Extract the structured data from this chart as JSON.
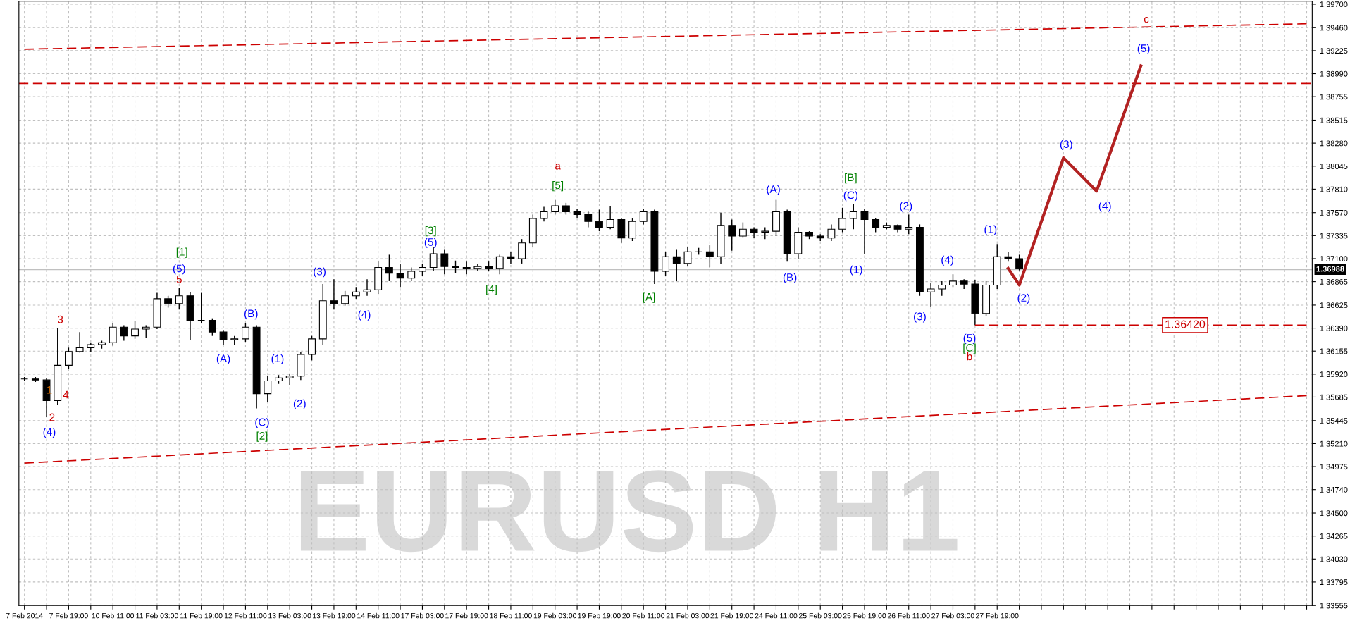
{
  "chart_data": {
    "type": "candlestick",
    "title": "EURUSD H1",
    "color": "#000000",
    "categories": [
      "7 Feb 2014",
      null,
      null,
      null,
      "7 Feb 19:00",
      null,
      null,
      null,
      "10 Feb 11:00",
      null,
      null,
      null,
      "11 Feb 03:00",
      null,
      null,
      null,
      "11 Feb 19:00",
      null,
      null,
      null,
      "12 Feb 11:00",
      null,
      null,
      null,
      "13 Feb 03:00",
      null,
      null,
      null,
      "13 Feb 19:00",
      null,
      null,
      null,
      "14 Feb 11:00",
      null,
      null,
      null,
      "17 Feb 03:00",
      null,
      null,
      null,
      "17 Feb 19:00",
      null,
      null,
      null,
      "18 Feb 11:00",
      null,
      null,
      null,
      "19 Feb 03:00",
      null,
      null,
      null,
      "19 Feb 19:00",
      null,
      null,
      null,
      "20 Feb 11:00",
      null,
      null,
      null,
      "21 Feb 03:00",
      null,
      null,
      null,
      "21 Feb 19:00",
      null,
      null,
      null,
      "24 Feb 11:00",
      null,
      null,
      null,
      "25 Feb 03:00",
      null,
      null,
      null,
      "25 Feb 19:00",
      null,
      null,
      null,
      "26 Feb 11:00",
      null,
      null,
      null,
      "27 Feb 03:00",
      null,
      null,
      null,
      "27 Feb 19:00",
      null,
      null,
      null,
      null,
      null,
      null,
      null,
      null,
      null,
      null,
      null,
      null,
      null,
      null,
      null,
      null,
      null,
      null,
      null,
      null,
      null,
      null,
      null,
      null,
      null,
      null,
      null,
      null
    ],
    "ohlc": [
      [
        1.3587,
        1.3589,
        1.3585,
        1.3587
      ],
      [
        1.3587,
        1.3589,
        1.3584,
        1.3586
      ],
      [
        1.3586,
        1.3588,
        1.3548,
        1.3565
      ],
      [
        1.3565,
        1.3639,
        1.3561,
        1.3601
      ],
      [
        1.3601,
        1.3619,
        1.3597,
        1.3615
      ],
      [
        1.3615,
        1.3635,
        1.3614,
        1.3619
      ],
      [
        1.3619,
        1.3624,
        1.3615,
        1.3622
      ],
      [
        1.3622,
        1.3626,
        1.3618,
        1.3624
      ],
      [
        1.3624,
        1.3644,
        1.3621,
        1.364
      ],
      [
        1.364,
        1.3642,
        1.3626,
        1.3631
      ],
      [
        1.3631,
        1.3646,
        1.3628,
        1.3638
      ],
      [
        1.3638,
        1.3642,
        1.3629,
        1.364
      ],
      [
        1.364,
        1.3675,
        1.3638,
        1.3669
      ],
      [
        1.3669,
        1.3672,
        1.366,
        1.3664
      ],
      [
        1.3664,
        1.368,
        1.3658,
        1.3672
      ],
      [
        1.3672,
        1.3676,
        1.3627,
        1.3647
      ],
      [
        1.3647,
        1.3675,
        1.3644,
        1.3647
      ],
      [
        1.3647,
        1.3649,
        1.3631,
        1.3635
      ],
      [
        1.3635,
        1.3637,
        1.3622,
        1.3627
      ],
      [
        1.3627,
        1.3631,
        1.3622,
        1.3628
      ],
      [
        1.3628,
        1.3644,
        1.3625,
        1.364
      ],
      [
        1.364,
        1.3642,
        1.3557,
        1.3572
      ],
      [
        1.3572,
        1.359,
        1.3563,
        1.3585
      ],
      [
        1.3585,
        1.3591,
        1.3582,
        1.3588
      ],
      [
        1.3588,
        1.3592,
        1.3581,
        1.359
      ],
      [
        1.359,
        1.3615,
        1.3586,
        1.3612
      ],
      [
        1.3612,
        1.3631,
        1.3606,
        1.3628
      ],
      [
        1.3628,
        1.3684,
        1.3622,
        1.3667
      ],
      [
        1.3667,
        1.3689,
        1.3658,
        1.3664
      ],
      [
        1.3664,
        1.3677,
        1.3662,
        1.3672
      ],
      [
        1.3672,
        1.3681,
        1.3669,
        1.3676
      ],
      [
        1.3676,
        1.3689,
        1.3672,
        1.3678
      ],
      [
        1.3678,
        1.3707,
        1.3674,
        1.3701
      ],
      [
        1.3701,
        1.3714,
        1.3687,
        1.3695
      ],
      [
        1.3695,
        1.3705,
        1.3681,
        1.369
      ],
      [
        1.369,
        1.3701,
        1.3687,
        1.3697
      ],
      [
        1.3697,
        1.3705,
        1.3692,
        1.3701
      ],
      [
        1.3701,
        1.3722,
        1.3697,
        1.3715
      ],
      [
        1.3715,
        1.3719,
        1.3694,
        1.3702
      ],
      [
        1.3702,
        1.3708,
        1.3695,
        1.3701
      ],
      [
        1.3701,
        1.3707,
        1.3694,
        1.37
      ],
      [
        1.37,
        1.3705,
        1.3697,
        1.3702
      ],
      [
        1.3702,
        1.3707,
        1.3697,
        1.37
      ],
      [
        1.37,
        1.3714,
        1.3694,
        1.3712
      ],
      [
        1.3712,
        1.3717,
        1.3705,
        1.371
      ],
      [
        1.371,
        1.373,
        1.3705,
        1.3726
      ],
      [
        1.3726,
        1.3755,
        1.3722,
        1.3751
      ],
      [
        1.3751,
        1.3763,
        1.3748,
        1.3758
      ],
      [
        1.3758,
        1.377,
        1.3755,
        1.3764
      ],
      [
        1.3764,
        1.3767,
        1.3755,
        1.3758
      ],
      [
        1.3758,
        1.3761,
        1.3751,
        1.3755
      ],
      [
        1.3755,
        1.3758,
        1.3742,
        1.3748
      ],
      [
        1.3748,
        1.376,
        1.3738,
        1.3742
      ],
      [
        1.3742,
        1.3764,
        1.374,
        1.375
      ],
      [
        1.375,
        1.3751,
        1.3726,
        1.3731
      ],
      [
        1.3731,
        1.3751,
        1.3728,
        1.3748
      ],
      [
        1.3748,
        1.3761,
        1.3745,
        1.3758
      ],
      [
        1.3758,
        1.376,
        1.3684,
        1.3697
      ],
      [
        1.3697,
        1.3717,
        1.3692,
        1.3712
      ],
      [
        1.3712,
        1.3719,
        1.3687,
        1.3705
      ],
      [
        1.3705,
        1.3722,
        1.3702,
        1.3717
      ],
      [
        1.3717,
        1.3721,
        1.3714,
        1.3717
      ],
      [
        1.3717,
        1.3724,
        1.3701,
        1.3712
      ],
      [
        1.3712,
        1.3757,
        1.3705,
        1.3744
      ],
      [
        1.3744,
        1.375,
        1.3718,
        1.3733
      ],
      [
        1.3733,
        1.3747,
        1.3732,
        1.374
      ],
      [
        1.374,
        1.3742,
        1.3731,
        1.3737
      ],
      [
        1.3737,
        1.3742,
        1.373,
        1.3738
      ],
      [
        1.3738,
        1.377,
        1.3733,
        1.3758
      ],
      [
        1.3758,
        1.376,
        1.3707,
        1.3715
      ],
      [
        1.3715,
        1.3742,
        1.371,
        1.3737
      ],
      [
        1.3737,
        1.3738,
        1.373,
        1.3733
      ],
      [
        1.3733,
        1.3735,
        1.3728,
        1.3731
      ],
      [
        1.3731,
        1.3745,
        1.3728,
        1.374
      ],
      [
        1.374,
        1.3762,
        1.3737,
        1.3751
      ],
      [
        1.3751,
        1.3766,
        1.374,
        1.3758
      ],
      [
        1.3758,
        1.3761,
        1.3715,
        1.375
      ],
      [
        1.375,
        1.3751,
        1.3737,
        1.3742
      ],
      [
        1.3742,
        1.3747,
        1.374,
        1.3744
      ],
      [
        1.3744,
        1.3745,
        1.3737,
        1.374
      ],
      [
        1.374,
        1.3755,
        1.3735,
        1.3742
      ],
      [
        1.3742,
        1.3745,
        1.3672,
        1.3676
      ],
      [
        1.3676,
        1.3685,
        1.3661,
        1.3679
      ],
      [
        1.3679,
        1.3687,
        1.3672,
        1.3683
      ],
      [
        1.3683,
        1.3694,
        1.3681,
        1.3687
      ],
      [
        1.3687,
        1.3689,
        1.3679,
        1.3684
      ],
      [
        1.3684,
        1.3688,
        1.3642,
        1.3654
      ],
      [
        1.3654,
        1.3687,
        1.3651,
        1.3683
      ],
      [
        1.3683,
        1.3725,
        1.3679,
        1.3712
      ],
      [
        1.3712,
        1.3717,
        1.3707,
        1.371
      ],
      [
        1.371,
        1.3714,
        1.3698,
        1.37
      ],
      null,
      null,
      null,
      null,
      null,
      null,
      null,
      null,
      null,
      null,
      null,
      null,
      null,
      null,
      null,
      null,
      null,
      null,
      null,
      null,
      null,
      null,
      null,
      null,
      null,
      null
    ],
    "series": [
      {
        "type": "line",
        "color": "#b22222",
        "line_style": "solid",
        "values": [
          null,
          null,
          null,
          null,
          null,
          null,
          null,
          null,
          null,
          null,
          null,
          null,
          null,
          null,
          null,
          null,
          null,
          null,
          null,
          null,
          null,
          null,
          null,
          null,
          null,
          null,
          null,
          null,
          null,
          null,
          null,
          null,
          null,
          null,
          null,
          null,
          null,
          null,
          null,
          null,
          null,
          null,
          null,
          null,
          null,
          null,
          null,
          null,
          null,
          null,
          null,
          null,
          null,
          null,
          null,
          null,
          null,
          null,
          null,
          null,
          null,
          null,
          null,
          null,
          null,
          null,
          null,
          null,
          null,
          null,
          null,
          null,
          null,
          null,
          null,
          null,
          null,
          null,
          null,
          null,
          null,
          null,
          null,
          null,
          null,
          null,
          null,
          null,
          null,
          1.37,
          1.3683,
          null,
          null,
          null,
          1.3813,
          null,
          null,
          1.3779,
          null,
          null,
          null,
          1.3907,
          null,
          null,
          null,
          null,
          null,
          null,
          null,
          null,
          null,
          null,
          null,
          null,
          null,
          null,
          null
        ]
      },
      {
        "type": "line",
        "color": "#cc0000",
        "line_style": "dashed",
        "values": [
          1.3924,
          null,
          null,
          null,
          null,
          null,
          null,
          null,
          null,
          null,
          null,
          null,
          null,
          null,
          null,
          null,
          null,
          null,
          null,
          null,
          null,
          null,
          null,
          null,
          null,
          null,
          null,
          null,
          null,
          null,
          null,
          null,
          null,
          null,
          null,
          null,
          null,
          null,
          null,
          null,
          null,
          null,
          null,
          null,
          null,
          null,
          null,
          null,
          null,
          null,
          null,
          null,
          null,
          null,
          null,
          null,
          null,
          null,
          null,
          null,
          null,
          null,
          null,
          null,
          null,
          null,
          null,
          null,
          null,
          null,
          null,
          null,
          null,
          null,
          null,
          null,
          null,
          null,
          null,
          null,
          null,
          null,
          null,
          null,
          null,
          null,
          null,
          null,
          null,
          null,
          null,
          null,
          null,
          null,
          null,
          null,
          null,
          null,
          null,
          null,
          null,
          null,
          null,
          null,
          null,
          null,
          null,
          null,
          null,
          null,
          null,
          null,
          null,
          null,
          null,
          null,
          1.395
        ]
      },
      {
        "type": "line",
        "color": "#cc0000",
        "line_style": "dashed",
        "values": [
          1.3501,
          null,
          null,
          null,
          null,
          null,
          null,
          null,
          null,
          null,
          null,
          null,
          null,
          null,
          null,
          null,
          null,
          null,
          null,
          null,
          null,
          null,
          null,
          null,
          null,
          null,
          null,
          null,
          null,
          null,
          null,
          null,
          null,
          null,
          null,
          null,
          null,
          null,
          null,
          null,
          null,
          null,
          null,
          null,
          null,
          null,
          null,
          null,
          null,
          null,
          null,
          null,
          null,
          null,
          null,
          null,
          null,
          null,
          null,
          null,
          null,
          null,
          null,
          null,
          null,
          null,
          null,
          null,
          null,
          null,
          null,
          null,
          null,
          null,
          null,
          null,
          null,
          null,
          null,
          null,
          null,
          null,
          null,
          null,
          null,
          null,
          null,
          null,
          null,
          null,
          null,
          null,
          null,
          null,
          null,
          null,
          null,
          null,
          null,
          null,
          null,
          null,
          null,
          null,
          null,
          null,
          null,
          null,
          null,
          null,
          null,
          null,
          null,
          null,
          null,
          null,
          1.357
        ]
      },
      {
        "type": "line",
        "color": "#cc0000",
        "line_style": "dashed",
        "values": [
          null,
          null,
          null,
          null,
          null,
          null,
          null,
          null,
          null,
          null,
          null,
          null,
          null,
          null,
          null,
          null,
          null,
          null,
          null,
          null,
          null,
          null,
          null,
          null,
          null,
          null,
          null,
          null,
          null,
          null,
          null,
          null,
          null,
          null,
          null,
          null,
          null,
          null,
          null,
          null,
          null,
          null,
          null,
          null,
          null,
          null,
          null,
          null,
          null,
          null,
          null,
          null,
          null,
          null,
          null,
          null,
          null,
          null,
          null,
          null,
          null,
          null,
          null,
          null,
          null,
          null,
          null,
          null,
          null,
          null,
          null,
          null,
          null,
          null,
          null,
          null,
          null,
          null,
          null,
          null,
          null,
          null,
          null,
          null,
          null,
          null,
          1.3642,
          null,
          null,
          null,
          null,
          null,
          null,
          null,
          null,
          null,
          null,
          null,
          null,
          null,
          null,
          null,
          null,
          null,
          null,
          null,
          null,
          null,
          null,
          null,
          null,
          null,
          null,
          null,
          null,
          null,
          1.3642
        ]
      }
    ],
    "ref_lines": [
      {
        "axis": "y",
        "value": 1.3889,
        "color": "#cc0000",
        "line_style": "dashed"
      },
      {
        "axis": "y",
        "value": 1.36988,
        "label": "1.36988",
        "color": "#c0c0c0",
        "line_style": "solid"
      }
    ],
    "annotations": [
      "1",
      "2",
      "3",
      "4",
      "(4)",
      "[1]",
      "(5)",
      "5",
      "(A)",
      "(B)",
      "(C)",
      "[2]",
      "(1)",
      "(2)",
      "(3)",
      "(4)",
      "[3]",
      "(5)",
      "[4]",
      "a",
      "[5]",
      "[A]",
      "(A)",
      "(B)",
      "[B]",
      "(C)",
      "(1)",
      "(2)",
      "(3)",
      "(4)",
      "(5)",
      "[C]",
      "b",
      "(1)",
      "(2)",
      "(3)",
      "(4)",
      "(5)",
      "c",
      {
        "text": "1.36420",
        "y": 1.3642
      }
    ],
    "ylim": [
      1.33555,
      1.3973
    ],
    "yticks": [
      1.33555,
      1.33795,
      {
        "value": 1.3403,
        "label": "1.34030"
      },
      1.34265,
      {
        "value": 1.345,
        "label": "1.34500"
      },
      {
        "value": 1.3474,
        "label": "1.34740"
      },
      1.34975,
      {
        "value": 1.3521,
        "label": "1.35210"
      },
      1.35445,
      1.35685,
      {
        "value": 1.3592,
        "label": "1.35920"
      },
      1.36155,
      {
        "value": 1.3639,
        "label": "1.36390"
      },
      1.36625,
      1.36865,
      {
        "value": 1.371,
        "label": "1.37100"
      },
      1.37335,
      {
        "value": 1.3757,
        "label": "1.37570"
      },
      {
        "value": 1.3781,
        "label": "1.37810"
      },
      1.38045,
      {
        "value": 1.3828,
        "label": "1.38280"
      },
      1.38515,
      1.38755,
      {
        "value": 1.3899,
        "label": "1.38990"
      },
      1.39225,
      {
        "value": 1.3946,
        "label": "1.39460"
      },
      {
        "value": 1.397,
        "label": "1.39700"
      }
    ],
    "grid": true
  }
}
